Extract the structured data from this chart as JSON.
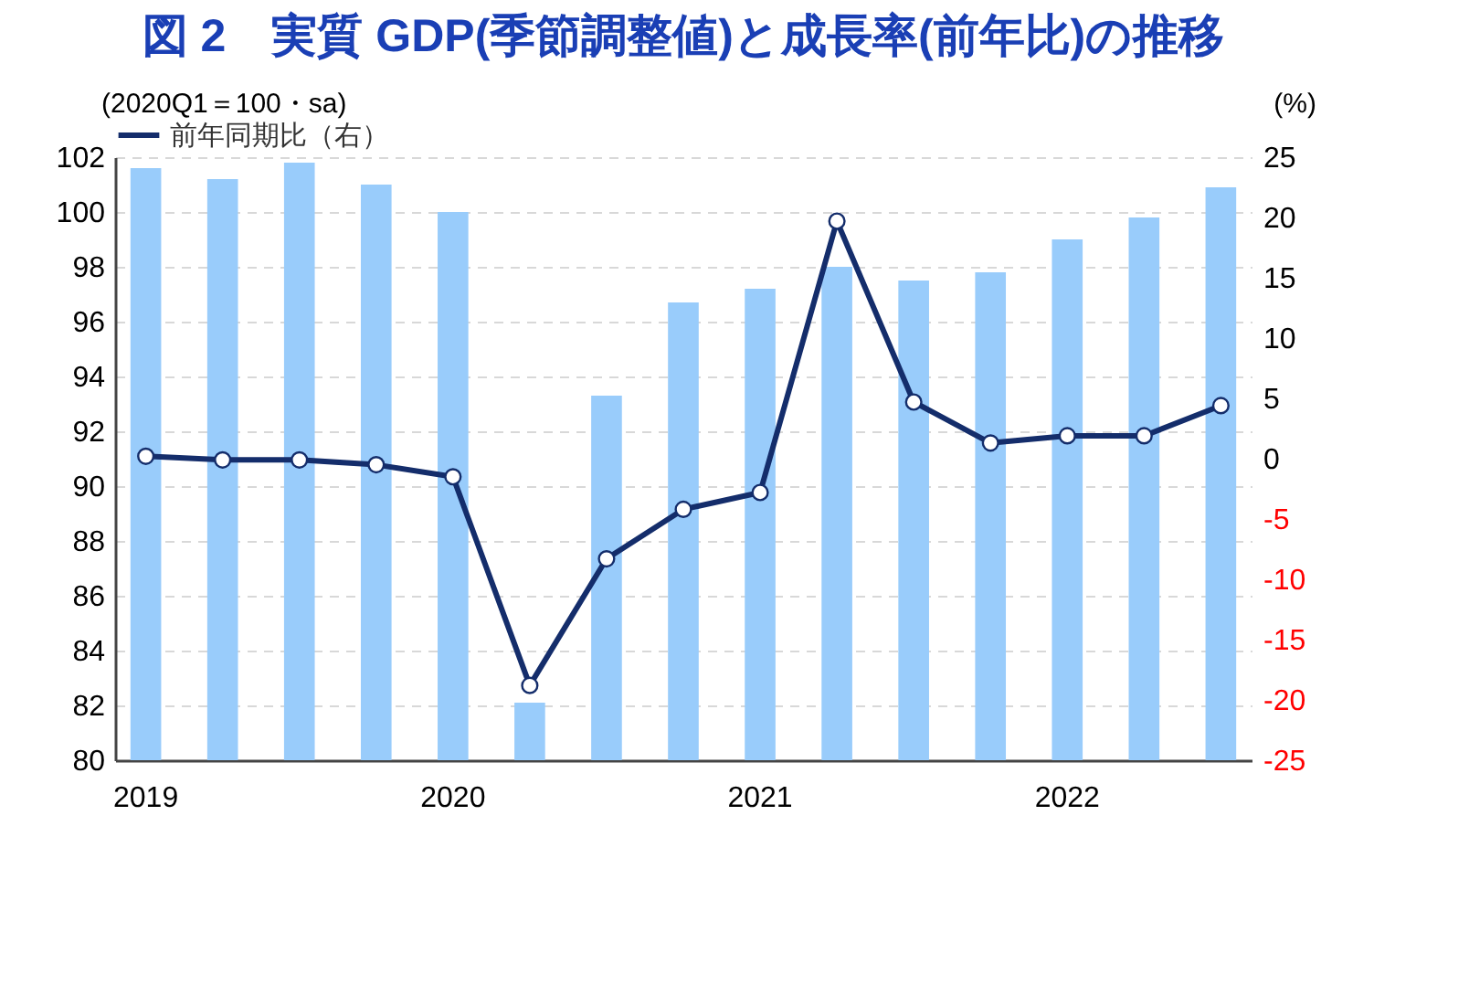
{
  "chart_data": {
    "type": "bar",
    "title": "図 2　実質 GDP(季節調整値)と成長率(前年比)の推移",
    "ylabel": "(2020Q1＝100・sa)",
    "y2label": "(%)",
    "categories": [
      "2019",
      null,
      null,
      null,
      "2020",
      null,
      null,
      null,
      "2021",
      null,
      null,
      null,
      "2022",
      null,
      null
    ],
    "series": [
      {
        "color": "#99ccfb",
        "values": [
          101.6,
          101.2,
          101.8,
          101.0,
          100.0,
          82.1,
          93.3,
          96.7,
          97.2,
          98.0,
          97.5,
          97.8,
          99.0,
          99.8,
          100.9
        ]
      },
      {
        "type": "line",
        "axis": "y2",
        "name": "前年同期比（右）",
        "color": "#142d6b",
        "values": [
          0.2,
          -0.1,
          -0.1,
          -0.5,
          -1.5,
          -18.8,
          -8.3,
          -4.2,
          -2.8,
          19.7,
          4.7,
          1.3,
          1.9,
          1.9,
          4.4
        ]
      }
    ],
    "ylim": [
      80,
      102
    ],
    "yticks": [
      80,
      82,
      84,
      86,
      88,
      90,
      92,
      94,
      96,
      98,
      100,
      102
    ],
    "y2lim": [
      -25,
      25
    ],
    "y2ticks": [
      -25,
      -20,
      -15,
      -10,
      -5,
      0,
      5,
      10,
      15,
      20,
      25
    ],
    "grid": "y",
    "legend": "top",
    "marker": "circle",
    "line_style": "solid"
  }
}
